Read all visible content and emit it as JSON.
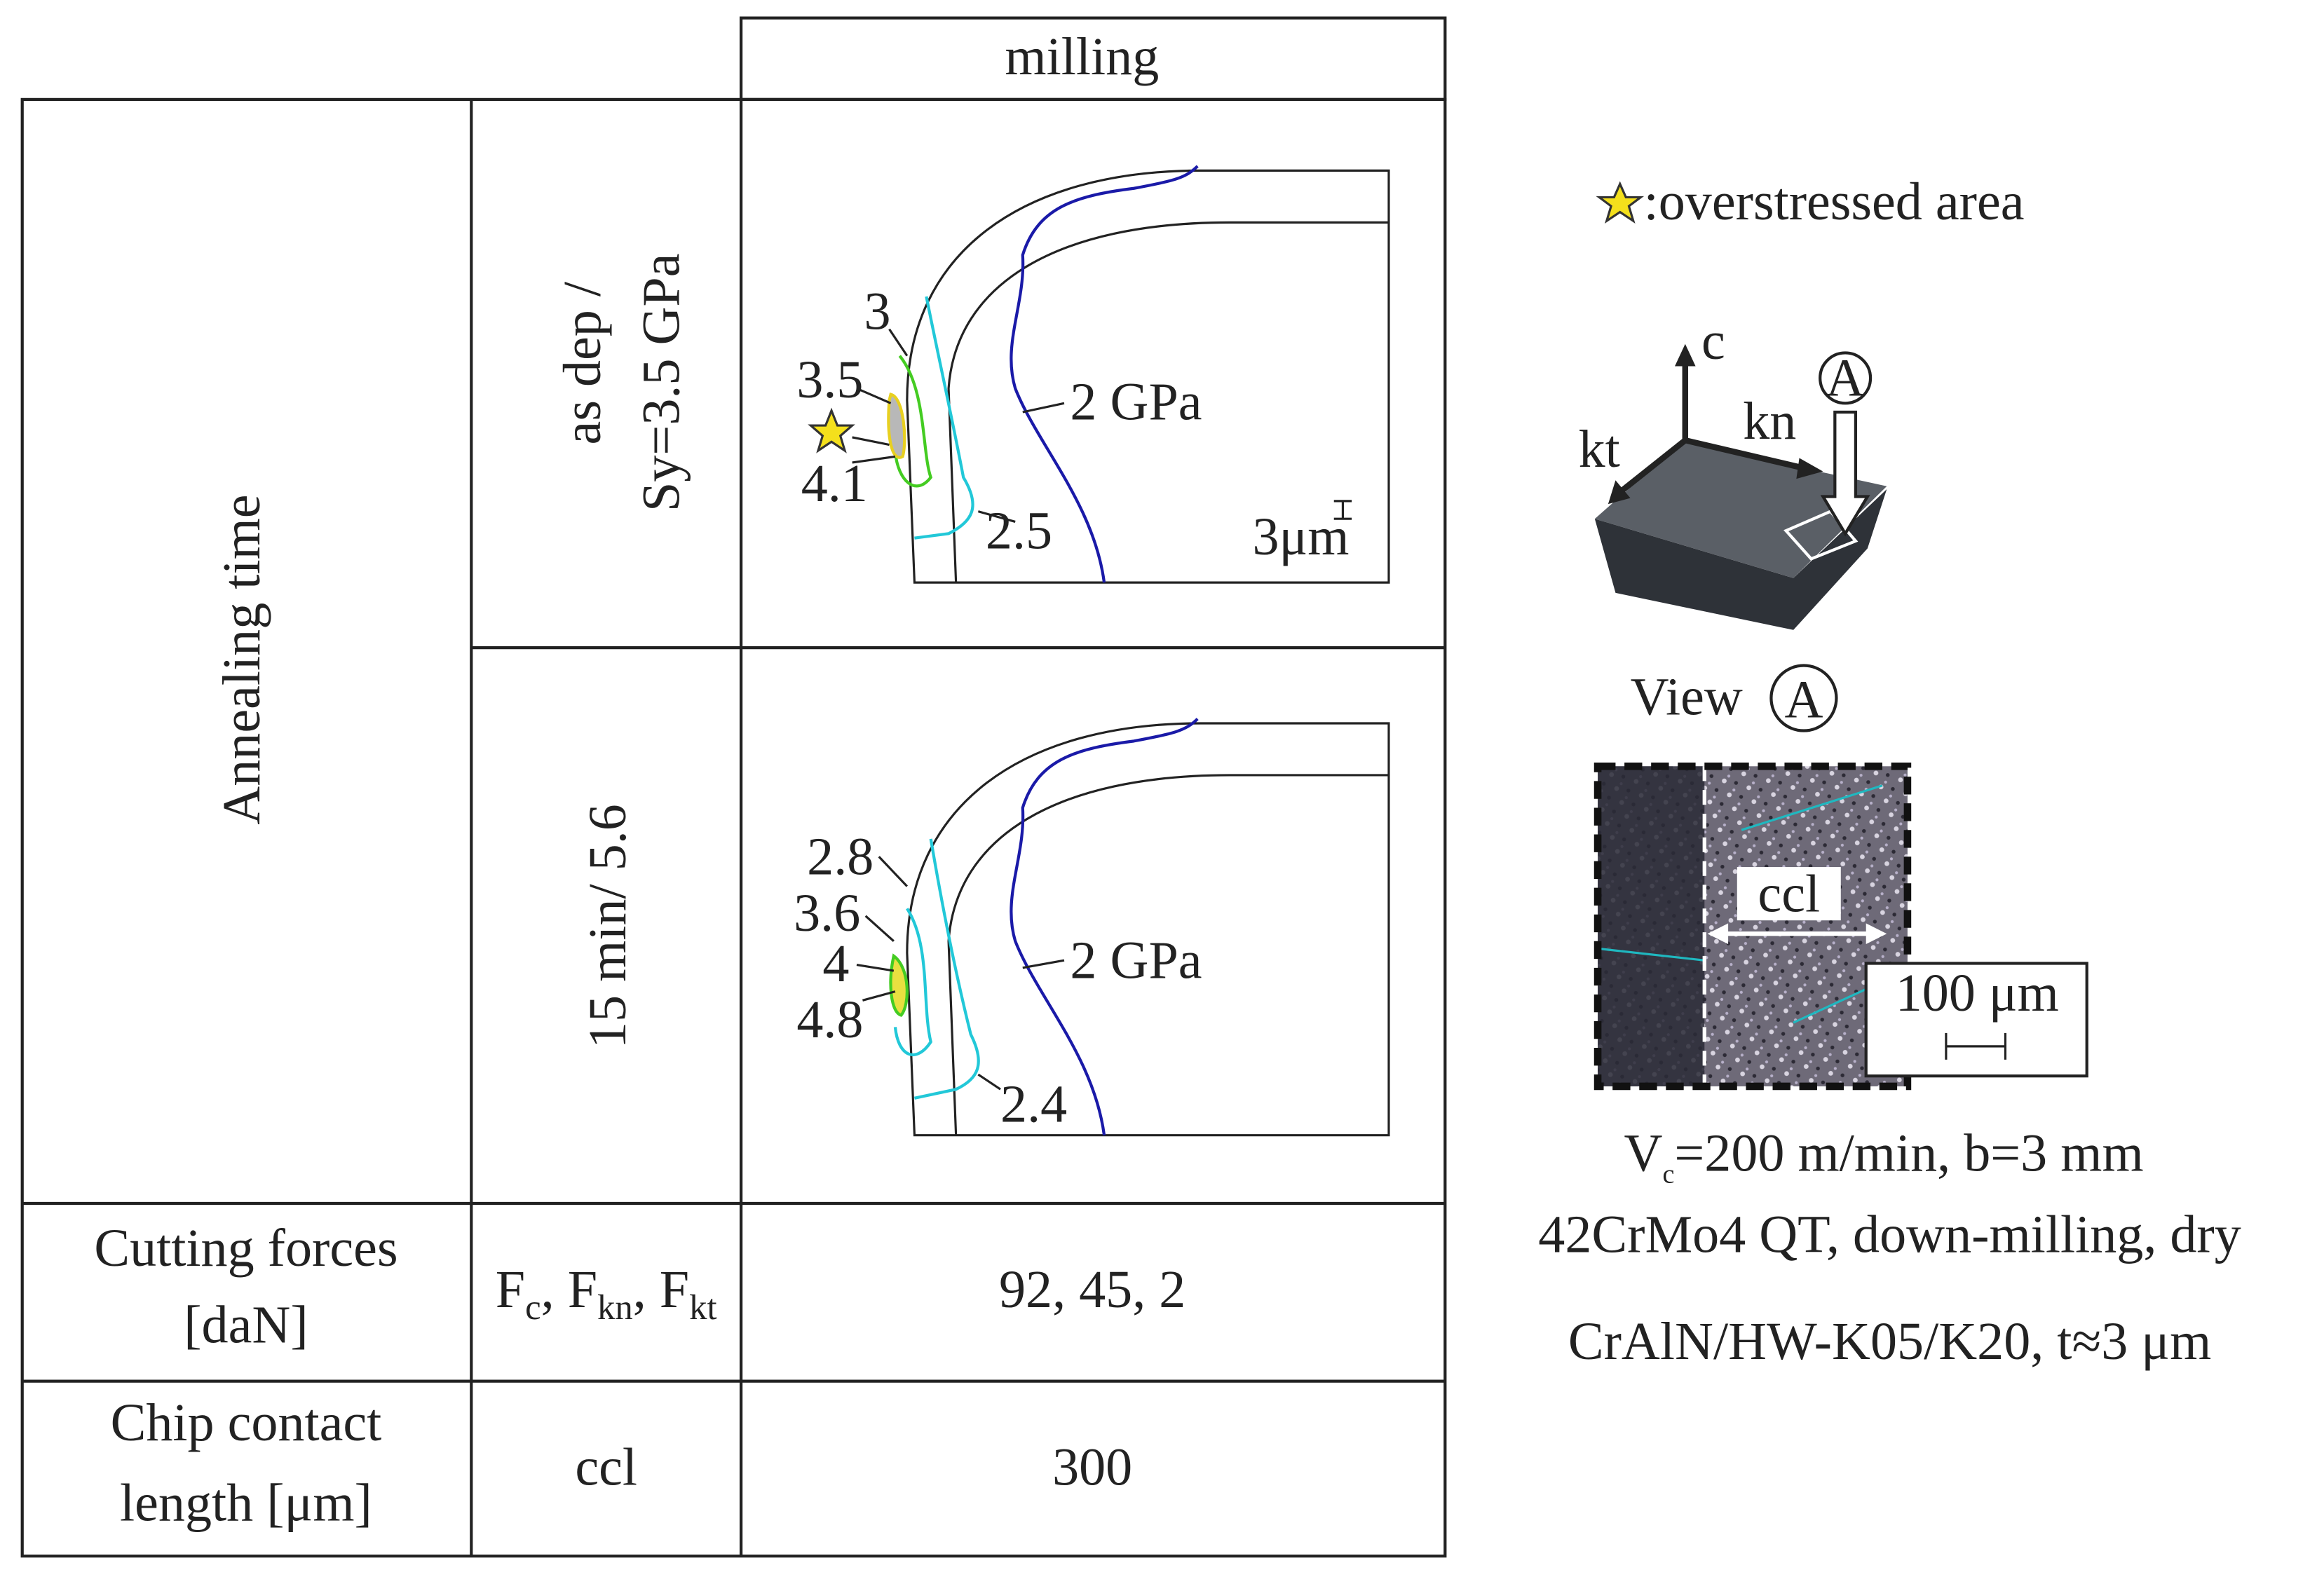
{
  "header": {
    "column": "milling"
  },
  "row_group_label": "Annealing time",
  "panels": [
    {
      "condition": [
        "as dep /",
        "Sy=3.5 GPa"
      ],
      "contours": [
        "3",
        "3.5",
        "4.1",
        "2 GPa",
        "2.5"
      ],
      "scale": "3μm"
    },
    {
      "condition": [
        "15 min/ 5.6"
      ],
      "contours": [
        "2.8",
        "3.6",
        "4",
        "4.8",
        "2 GPa",
        "2.4"
      ]
    }
  ],
  "forces": {
    "label": [
      "Cutting forces",
      "[daN]"
    ],
    "symbols": [
      {
        "base": "F",
        "sub": "c"
      },
      {
        "base": ", F",
        "sub": "kn"
      },
      {
        "base": ", F",
        "sub": "kt"
      }
    ],
    "value": "92, 45, 2"
  },
  "ccl_row": {
    "label": [
      "Chip contact",
      "length [μm]"
    ],
    "symbol": "ccl",
    "value": "300"
  },
  "legend": ":overstressed area",
  "insert": {
    "axes": [
      "c",
      "kt",
      "kn"
    ],
    "view_marker": "A",
    "view_label": "View",
    "view_marker_2": "A",
    "micrograph_label": "ccl",
    "scale": "100 μm"
  },
  "conditions": [
    {
      "base": "V",
      "sub": "c",
      "rest": "=200 m/min, b=3 mm"
    },
    "42CrMo4 QT, down-milling, dry",
    "CrAlN/HW-K05/K20, t≈3 μm"
  ]
}
